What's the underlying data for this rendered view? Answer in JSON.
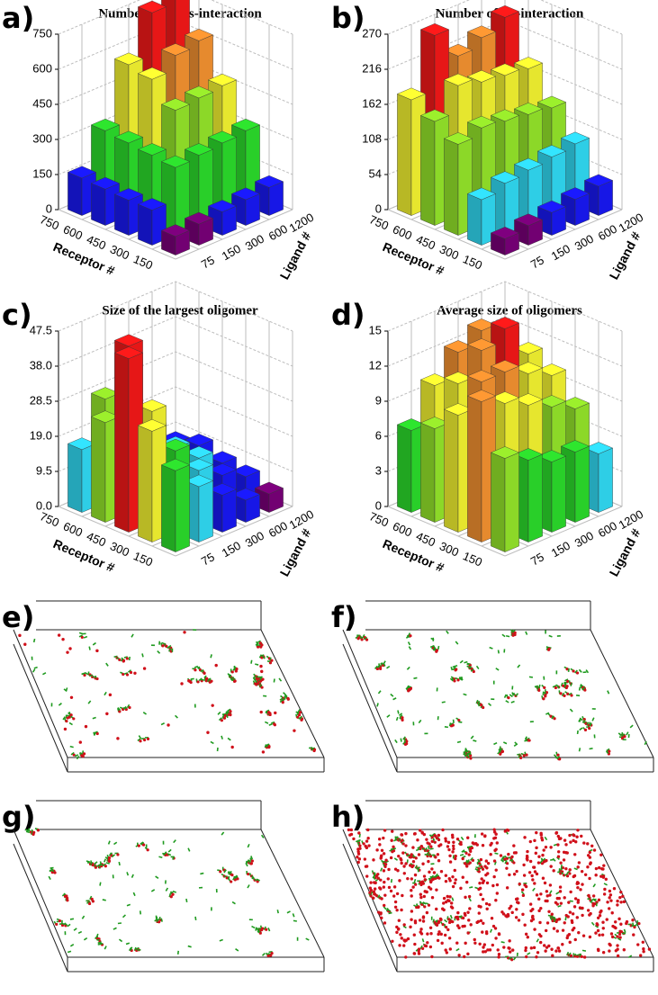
{
  "chart_data": [
    {
      "type": "bar3d",
      "panel_label": "a)",
      "title": "Number of trans-interaction",
      "x_label": "Receptor #",
      "y_label": "Ligand #",
      "x_categories": [
        "750",
        "600",
        "450",
        "300",
        "150"
      ],
      "y_categories": [
        "75",
        "150",
        "300",
        "600",
        "1200"
      ],
      "values": [
        [
          160,
          320,
          560,
          740,
          760
        ],
        [
          155,
          310,
          540,
          600,
          620
        ],
        [
          150,
          300,
          450,
          460,
          470
        ],
        [
          150,
          290,
          300,
          310,
          320
        ],
        [
          80,
          90,
          100,
          110,
          120
        ]
      ],
      "zlim": [
        0,
        750
      ],
      "zticks": [
        0,
        150,
        300,
        450,
        600,
        750
      ],
      "colormap": [
        "#7f007f",
        "#1a1aff",
        "#33e5ff",
        "#2ee62e",
        "#9cf02c",
        "#ffff33",
        "#ff9933",
        "#ff1a1a"
      ],
      "grid": true
    },
    {
      "type": "bar3d",
      "panel_label": "b)",
      "title": "Number of cis-interaction",
      "x_label": "Receptor #",
      "y_label": "Ligand #",
      "x_categories": [
        "750",
        "600",
        "450",
        "300",
        "150"
      ],
      "y_categories": [
        "75",
        "150",
        "300",
        "600",
        "1200"
      ],
      "values": [
        [
          178,
          262,
          215,
          228,
          244
        ],
        [
          160,
          200,
          190,
          185,
          180
        ],
        [
          140,
          150,
          145,
          140,
          135
        ],
        [
          70,
          80,
          85,
          90,
          95
        ],
        [
          25,
          30,
          35,
          40,
          45
        ]
      ],
      "zlim": [
        0,
        270
      ],
      "zticks": [
        0,
        54,
        108,
        162,
        216,
        270
      ],
      "colormap": [
        "#7f007f",
        "#1a1aff",
        "#33e5ff",
        "#2ee62e",
        "#9cf02c",
        "#ffff33",
        "#ff9933",
        "#ff1a1a"
      ],
      "grid": true
    },
    {
      "type": "bar3d",
      "panel_label": "c)",
      "title": "Size of the largest oligomer",
      "x_label": "Receptor #",
      "y_label": "Ligand #",
      "x_categories": [
        "750",
        "600",
        "450",
        "300",
        "150"
      ],
      "y_categories": [
        "75",
        "150",
        "300",
        "600",
        "1200"
      ],
      "values": [
        [
          17,
          28,
          12,
          10,
          8
        ],
        [
          27,
          45,
          20,
          12,
          10
        ],
        [
          47,
          30,
          16,
          12,
          8
        ],
        [
          30,
          22,
          14,
          10,
          7
        ],
        [
          22,
          15,
          10,
          6,
          5
        ]
      ],
      "zlim": [
        0,
        47.5
      ],
      "zticks": [
        {
          "value": 0,
          "label": "0.0"
        },
        9.5,
        {
          "value": 19,
          "label": "19.0"
        },
        28.5,
        {
          "value": 38,
          "label": "38.0"
        },
        47.5
      ],
      "colormap": [
        "#7f007f",
        "#1a1aff",
        "#33e5ff",
        "#2ee62e",
        "#9cf02c",
        "#ffff33",
        "#ff9933",
        "#ff1a1a"
      ],
      "grid": true
    },
    {
      "type": "bar3d",
      "panel_label": "d)",
      "title": "Average size of oligomers",
      "x_label": "Receptor #",
      "y_label": "Ligand #",
      "x_categories": [
        "750",
        "600",
        "450",
        "300",
        "150"
      ],
      "y_categories": [
        "75",
        "150",
        "300",
        "600",
        "1200"
      ],
      "values": [
        [
          7,
          10,
          12,
          13,
          12
        ],
        [
          8,
          11,
          13,
          14,
          11
        ],
        [
          10,
          12,
          12,
          11,
          10
        ],
        [
          12,
          11,
          10,
          9,
          8
        ],
        [
          8,
          7,
          6,
          6,
          5
        ]
      ],
      "zlim": [
        0,
        15
      ],
      "zticks": [
        0,
        3,
        6,
        9,
        12,
        15
      ],
      "colormap": [
        "#7f007f",
        "#1a1aff",
        "#33e5ff",
        "#2ee62e",
        "#9cf02c",
        "#ffff33",
        "#ff9933",
        "#ff1a1a"
      ],
      "grid": true
    }
  ],
  "snapshots": [
    {
      "label": "e)"
    },
    {
      "label": "f)"
    },
    {
      "label": "g)"
    },
    {
      "label": "h)"
    }
  ]
}
